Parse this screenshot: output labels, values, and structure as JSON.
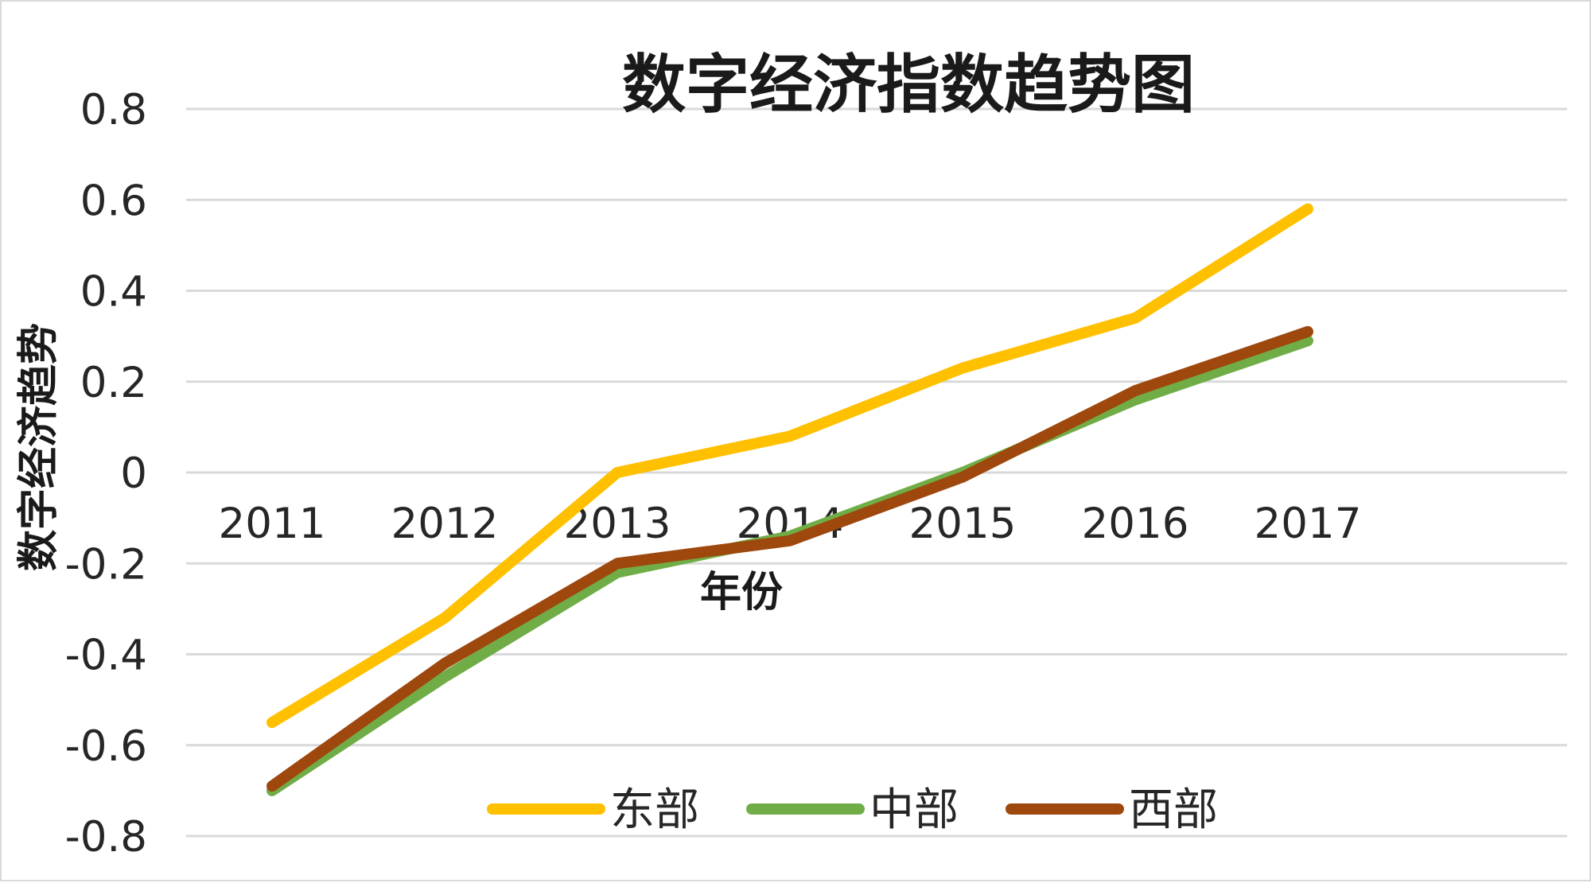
{
  "chart_data": {
    "type": "line",
    "title": "数字经济指数趋势图",
    "xlabel": "年份",
    "ylabel": "数字经济趋势",
    "categories": [
      "2011",
      "2012",
      "2013",
      "2014",
      "2015",
      "2016",
      "2017"
    ],
    "yticks": [
      "0.8",
      "0.6",
      "0.4",
      "0.2",
      "0",
      "-0.2",
      "-0.4",
      "-0.6",
      "-0.8"
    ],
    "ylim": [
      -0.8,
      0.8
    ],
    "grid": true,
    "legend_position": "bottom",
    "series": [
      {
        "name": "东部",
        "color": "#FFC000",
        "values": [
          -0.55,
          -0.32,
          0.0,
          0.08,
          0.23,
          0.34,
          0.58
        ]
      },
      {
        "name": "中部",
        "color": "#70AD47",
        "values": [
          -0.7,
          -0.45,
          -0.22,
          -0.14,
          0.0,
          0.16,
          0.29
        ]
      },
      {
        "name": "西部",
        "color": "#9E480E",
        "values": [
          -0.69,
          -0.42,
          -0.2,
          -0.15,
          -0.01,
          0.18,
          0.31
        ]
      }
    ]
  }
}
